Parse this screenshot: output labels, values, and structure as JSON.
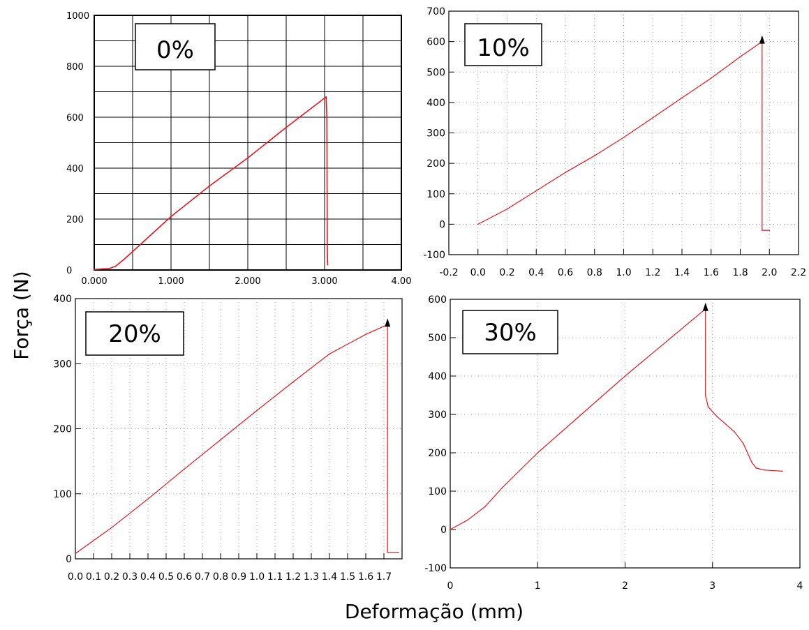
{
  "figure": {
    "ylabel": "Força (N)",
    "xlabel": "Deformação (mm)"
  },
  "colors": {
    "curve": "#e8141c",
    "axis": "#000000",
    "grid_solid": "#000000",
    "grid_dotted": "#888888",
    "arrow": "#000000"
  },
  "chart_data": [
    {
      "type": "line",
      "label": "0%",
      "style": "scanned-solid-grid",
      "xlim": [
        0,
        4.0
      ],
      "ylim": [
        0,
        1000
      ],
      "x_ticks": [
        0,
        1,
        2,
        3,
        4
      ],
      "x_tick_labels": [
        "0.000",
        "1.000",
        "2.000",
        "3.000",
        "4.00"
      ],
      "y_ticks": [
        0,
        200,
        400,
        600,
        800,
        1000
      ],
      "y_tick_labels": [
        "0",
        "200",
        "400",
        "600",
        "800",
        "1000"
      ],
      "series": [
        {
          "x": [
            0.0,
            0.1,
            0.2,
            0.28,
            0.4,
            0.6,
            1.0,
            1.5,
            2.0,
            2.5,
            3.0,
            3.02,
            3.03,
            3.035,
            3.04
          ],
          "y": [
            2,
            4,
            6,
            15,
            45,
            100,
            210,
            330,
            440,
            560,
            675,
            680,
            600,
            80,
            20
          ]
        }
      ]
    },
    {
      "type": "line",
      "label": "10%",
      "style": "dotted-grid",
      "xlim": [
        -0.2,
        2.2
      ],
      "ylim": [
        -100,
        700
      ],
      "x_ticks": [
        -0.2,
        0.0,
        0.2,
        0.4,
        0.6,
        0.8,
        1.0,
        1.2,
        1.4,
        1.6,
        1.8,
        2.0,
        2.2
      ],
      "x_tick_labels": [
        "-0.2",
        "0.0",
        "0.2",
        "0.4",
        "0.6",
        "0.8",
        "1.0",
        "1.2",
        "1.4",
        "1.6",
        "1.8",
        "2.0",
        "2.2"
      ],
      "y_ticks": [
        -100,
        0,
        100,
        200,
        300,
        400,
        500,
        600,
        700
      ],
      "y_tick_labels": [
        "-100",
        "0",
        "100",
        "200",
        "300",
        "400",
        "500",
        "600",
        "700"
      ],
      "series": [
        {
          "x": [
            0.0,
            0.2,
            0.4,
            0.6,
            0.8,
            1.0,
            1.2,
            1.4,
            1.6,
            1.8,
            1.95,
            1.95,
            1.95,
            2.0
          ],
          "y": [
            0,
            50,
            110,
            170,
            225,
            285,
            350,
            415,
            480,
            550,
            600,
            600,
            -20,
            -20
          ]
        }
      ],
      "break_marker": {
        "x": 1.95,
        "y": 600
      }
    },
    {
      "type": "line",
      "label": "20%",
      "style": "dotted-grid",
      "xlim": [
        0,
        1.8
      ],
      "ylim": [
        0,
        400
      ],
      "x_ticks": [
        0.0,
        0.1,
        0.2,
        0.3,
        0.4,
        0.5,
        0.6,
        0.7,
        0.8,
        0.9,
        1.0,
        1.1,
        1.2,
        1.3,
        1.4,
        1.5,
        1.6,
        1.7
      ],
      "x_tick_labels": [
        "0.0",
        "0.1",
        "0.2",
        "0.3",
        "0.4",
        "0.5",
        "0.6",
        "0.7",
        "0.8",
        "0.9",
        "1.0",
        "1.1",
        "1.2",
        "1.3",
        "1.4",
        "1.5",
        "1.6",
        "1.7"
      ],
      "y_ticks": [
        0,
        100,
        200,
        300,
        400
      ],
      "y_tick_labels": [
        "0",
        "100",
        "200",
        "300",
        "400"
      ],
      "series": [
        {
          "x": [
            0.0,
            0.2,
            0.4,
            0.6,
            0.8,
            1.0,
            1.2,
            1.4,
            1.6,
            1.72,
            1.72,
            1.72,
            1.78
          ],
          "y": [
            8,
            48,
            92,
            138,
            183,
            228,
            272,
            315,
            345,
            360,
            360,
            10,
            10
          ]
        }
      ],
      "break_marker": {
        "x": 1.72,
        "y": 360
      }
    },
    {
      "type": "line",
      "label": "30%",
      "style": "dotted-grid",
      "xlim": [
        0,
        4
      ],
      "ylim": [
        -100,
        600
      ],
      "x_ticks": [
        0,
        1,
        2,
        3,
        4
      ],
      "x_tick_labels": [
        "0",
        "1",
        "2",
        "3",
        "4"
      ],
      "y_ticks": [
        -100,
        0,
        100,
        200,
        300,
        400,
        500,
        600
      ],
      "y_tick_labels": [
        "-100",
        "0",
        "100",
        "200",
        "300",
        "400",
        "500",
        "600"
      ],
      "series": [
        {
          "x": [
            0.0,
            0.2,
            0.4,
            0.6,
            1.0,
            1.5,
            2.0,
            2.5,
            2.92,
            2.92,
            2.95,
            3.05,
            3.15,
            3.25,
            3.35,
            3.45,
            3.5,
            3.6,
            3.8
          ],
          "y": [
            0,
            25,
            60,
            110,
            200,
            300,
            400,
            495,
            575,
            350,
            320,
            295,
            275,
            255,
            225,
            175,
            160,
            155,
            152
          ]
        }
      ],
      "break_marker": {
        "x": 2.92,
        "y": 575
      }
    }
  ]
}
